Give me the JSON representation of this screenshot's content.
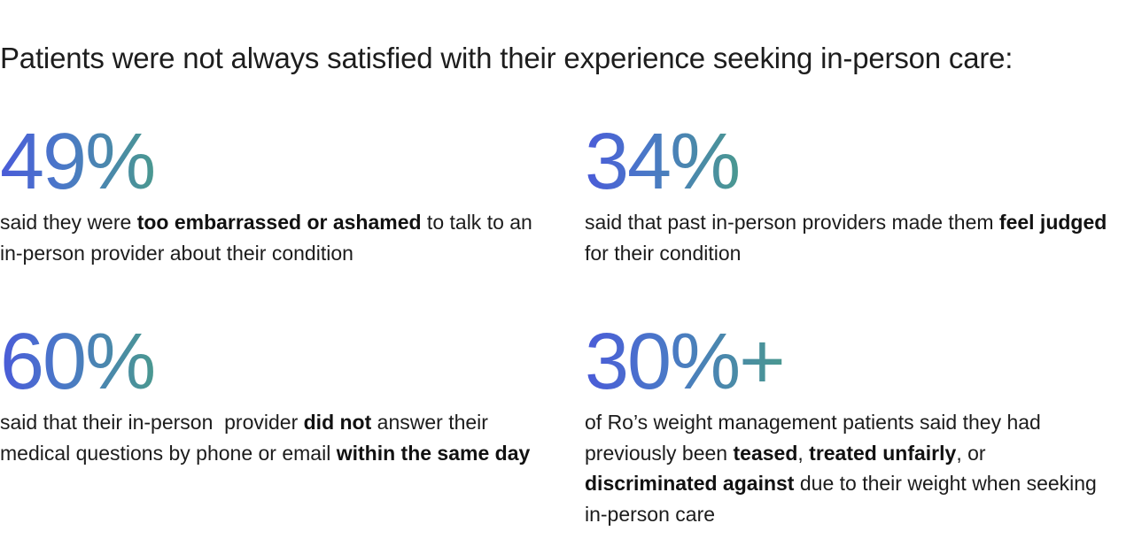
{
  "headline": "Patients were not always satisfied with their experience seeking in-person care:",
  "colors": {
    "gradient_start": "#4a5bd8",
    "gradient_end": "#4a9890",
    "text": "#1c1c1c"
  },
  "stats": [
    {
      "value": "49%",
      "segments": [
        {
          "text": "said they were ",
          "bold": false
        },
        {
          "text": "too embarrassed or ashamed",
          "bold": true
        },
        {
          "text": " to talk to an in-person provider about their condition",
          "bold": false
        }
      ]
    },
    {
      "value": "34%",
      "segments": [
        {
          "text": "said that past in-person providers made them ",
          "bold": false
        },
        {
          "text": "feel judged",
          "bold": true
        },
        {
          "text": " for their condition",
          "bold": false
        }
      ]
    },
    {
      "value": "60%",
      "segments": [
        {
          "text": "said that their in-person  provider ",
          "bold": false
        },
        {
          "text": "did not",
          "bold": true
        },
        {
          "text": " answer their medical questions by phone or email ",
          "bold": false
        },
        {
          "text": "within the same day",
          "bold": true
        }
      ]
    },
    {
      "value": "30%+",
      "segments": [
        {
          "text": "of Ro’s weight management patients said they had previously been ",
          "bold": false
        },
        {
          "text": "teased",
          "bold": true
        },
        {
          "text": ", ",
          "bold": false
        },
        {
          "text": "treated unfairly",
          "bold": true
        },
        {
          "text": ", or ",
          "bold": false
        },
        {
          "text": "discriminated against",
          "bold": true
        },
        {
          "text": " due to their weight when seeking in-person care",
          "bold": false
        }
      ]
    }
  ]
}
